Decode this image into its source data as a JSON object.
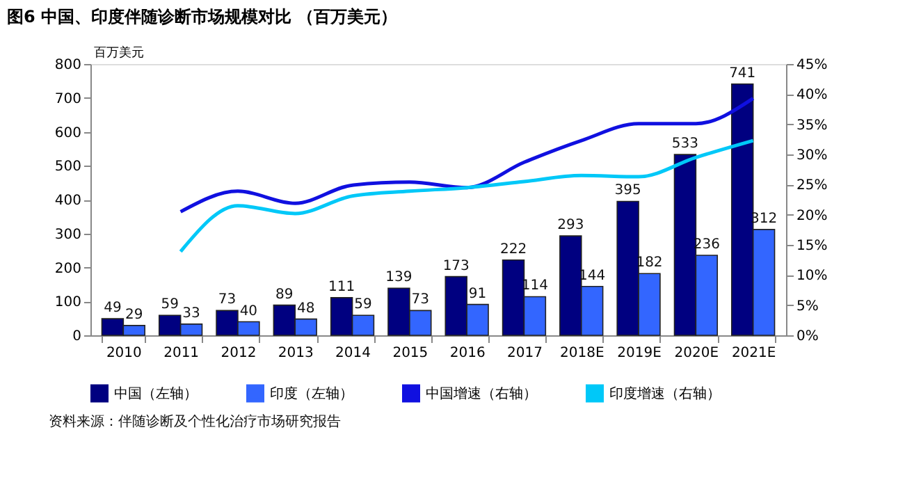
{
  "chart_data": {
    "type": "bar",
    "title": "图6  中国、印度伴随诊断市场规模对比 （百万美元）",
    "ylabel": "百万美元",
    "categories": [
      "2010",
      "2011",
      "2012",
      "2013",
      "2014",
      "2015",
      "2016",
      "2017",
      "2018E",
      "2019E",
      "2020E",
      "2021E"
    ],
    "series": [
      {
        "name": "中国（左轴）",
        "color": "#000080",
        "values": [
          49,
          59,
          73,
          89,
          111,
          139,
          173,
          222,
          293,
          395,
          533,
          741
        ],
        "value_labels": [
          "49",
          "59",
          "73",
          "89",
          "111",
          "139",
          "173",
          "222",
          "293",
          "395",
          "533",
          "741"
        ]
      },
      {
        "name": "印度（左轴）",
        "color": "#3366ff",
        "values": [
          29,
          33,
          40,
          48,
          59,
          73,
          91,
          114,
          144,
          182,
          236,
          312
        ],
        "value_labels": [
          "29",
          "33",
          "40",
          "48",
          "59",
          "73",
          "91",
          "114",
          "144",
          "182",
          "236",
          "312"
        ]
      },
      {
        "name": "中国增速（右轴）",
        "type": "line",
        "axis": "y2",
        "color": "#1010e0",
        "values": [
          null,
          20.5,
          23.9,
          21.9,
          24.9,
          25.4,
          24.5,
          28.7,
          32.3,
          35.1,
          35.1,
          39.3
        ]
      },
      {
        "name": "印度增速（右轴）",
        "type": "line",
        "axis": "y2",
        "color": "#00c8f8",
        "values": [
          null,
          13.9,
          21.5,
          20.2,
          23.1,
          23.9,
          24.5,
          25.5,
          26.5,
          26.3,
          29.5,
          32.3
        ]
      }
    ],
    "ylim": [
      0,
      800
    ],
    "yticks": [
      0,
      100,
      200,
      300,
      400,
      500,
      600,
      700,
      800
    ],
    "y2lim": [
      0,
      45
    ],
    "y2ticks": [
      {
        "value": 0,
        "label": "0%"
      },
      {
        "value": 5,
        "label": "5%"
      },
      {
        "value": 10,
        "label": "10%"
      },
      {
        "value": 15,
        "label": "15%"
      },
      {
        "value": 20,
        "label": "20%"
      },
      {
        "value": 25,
        "label": "25%"
      },
      {
        "value": 30,
        "label": "30%"
      },
      {
        "value": 35,
        "label": "35%"
      },
      {
        "value": 40,
        "label": "40%"
      },
      {
        "value": 45,
        "label": "45%"
      }
    ],
    "legend": "bottom",
    "grid": false,
    "annotations": [
      "资料来源：伴随诊断及个性化治疗市场研究报告"
    ]
  }
}
